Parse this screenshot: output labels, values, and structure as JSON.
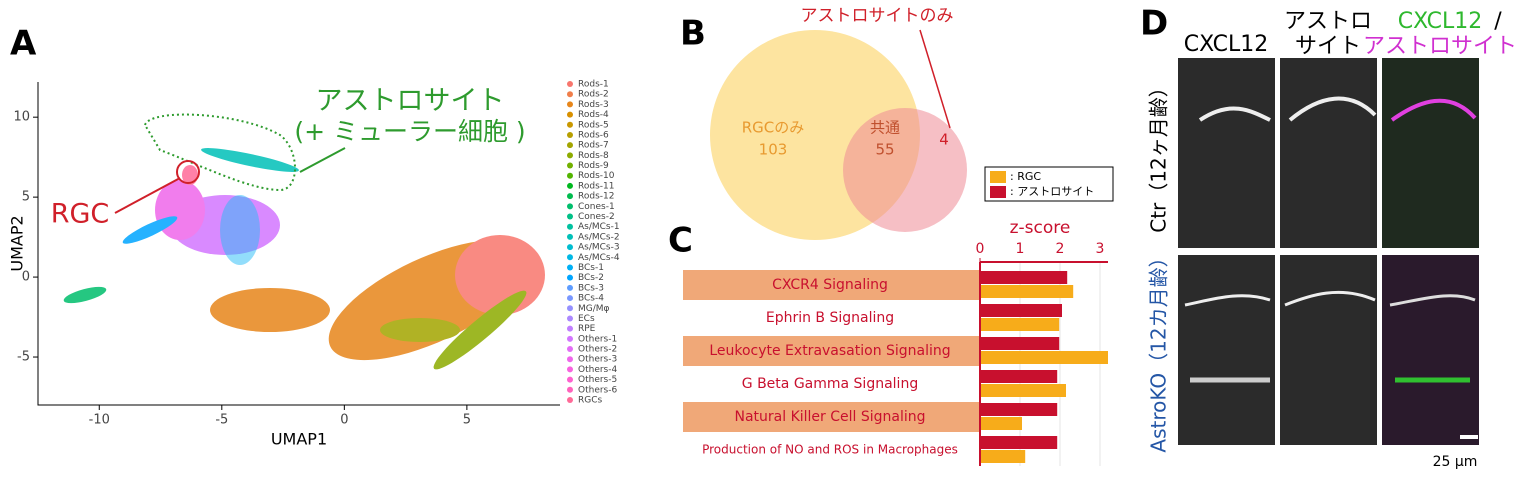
{
  "panel_labels": [
    "A",
    "B",
    "C",
    "D"
  ],
  "chart_data": [
    {
      "type": "scatter",
      "xlabel": "UMAP1",
      "ylabel": "UMAP2",
      "xlim": [
        -12.5,
        8.8
      ],
      "ylim": [
        -8,
        12.2
      ],
      "xticks": [
        -10,
        -5,
        0,
        5
      ],
      "yticks": [
        -5,
        0,
        5,
        10
      ],
      "legend": [
        {
          "name": "Rods-1",
          "color": "#f8766d"
        },
        {
          "name": "Rods-2",
          "color": "#f07e4a"
        },
        {
          "name": "Rods-3",
          "color": "#e7861b"
        },
        {
          "name": "Rods-4",
          "color": "#d89000"
        },
        {
          "name": "Rods-5",
          "color": "#c99800"
        },
        {
          "name": "Rods-6",
          "color": "#b79f00"
        },
        {
          "name": "Rods-7",
          "color": "#a3a500"
        },
        {
          "name": "Rods-8",
          "color": "#8dab00"
        },
        {
          "name": "Rods-9",
          "color": "#72b000"
        },
        {
          "name": "Rods-10",
          "color": "#53b400"
        },
        {
          "name": "Rods-11",
          "color": "#00b81f"
        },
        {
          "name": "Rods-12",
          "color": "#00bb4e"
        },
        {
          "name": "Cones-1",
          "color": "#00be6c"
        },
        {
          "name": "Cones-2",
          "color": "#00c087"
        },
        {
          "name": "As/MCs-1",
          "color": "#00c1a0"
        },
        {
          "name": "As/MCs-2",
          "color": "#00c0b8"
        },
        {
          "name": "As/MCs-3",
          "color": "#00bdd0"
        },
        {
          "name": "As/MCs-4",
          "color": "#00b8e5"
        },
        {
          "name": "BCs-1",
          "color": "#00b0f6"
        },
        {
          "name": "BCs-2",
          "color": "#00a5ff"
        },
        {
          "name": "BCs-3",
          "color": "#5d9cff"
        },
        {
          "name": "BCs-4",
          "color": "#7997ff"
        },
        {
          "name": "MG/Mφ",
          "color": "#9590ff"
        },
        {
          "name": "ECs",
          "color": "#ac88ff"
        },
        {
          "name": "RPE",
          "color": "#c17fff"
        },
        {
          "name": "Others-1",
          "color": "#d376ff"
        },
        {
          "name": "Others-2",
          "color": "#e36ef6"
        },
        {
          "name": "Others-3",
          "color": "#ef67eb"
        },
        {
          "name": "Others-4",
          "color": "#f863df"
        },
        {
          "name": "Others-5",
          "color": "#fe61cf"
        },
        {
          "name": "Others-6",
          "color": "#ff62bc"
        },
        {
          "name": "RGCs",
          "color": "#ff6a98"
        }
      ],
      "annotations": [
        "アストロサイト",
        "(+ ミューラー細胞 )",
        "RGC"
      ]
    },
    {
      "type": "venn",
      "sets": [
        "RGCのみ",
        "共通",
        "アストロサイトのみ"
      ],
      "values": [
        103,
        55,
        4
      ]
    },
    {
      "type": "barh",
      "xlabel": "z-score",
      "categories": [
        "CXCR4 Signaling",
        "Ephrin B Signaling",
        "Leukocyte Extravasation Signaling",
        "G Beta Gamma Signaling",
        "Natural Killer Cell Signaling",
        "Production of NO and ROS in Macrophages"
      ],
      "series": [
        {
          "name": ": アストロサイト",
          "color": "#c8102e",
          "values": [
            2.18,
            2.05,
            1.98,
            1.93,
            1.93,
            1.93
          ]
        },
        {
          "name": ": RGC",
          "color": "#f7ac1a",
          "values": [
            2.33,
            1.98,
            3.2,
            2.15,
            1.05,
            1.13
          ]
        }
      ],
      "xlim": [
        0,
        3.2
      ],
      "xticks": [
        0,
        1,
        2,
        3
      ],
      "grid": true
    }
  ],
  "micrograph": {
    "columns": [
      "CXCL12",
      "アストロ",
      "サイト",
      "CXCL12",
      "/",
      "アストロサイト"
    ],
    "rows": [
      "Ctr（12ヶ月齢）",
      "AstroKO（12カ月齢）"
    ],
    "scale": "25 μm"
  }
}
